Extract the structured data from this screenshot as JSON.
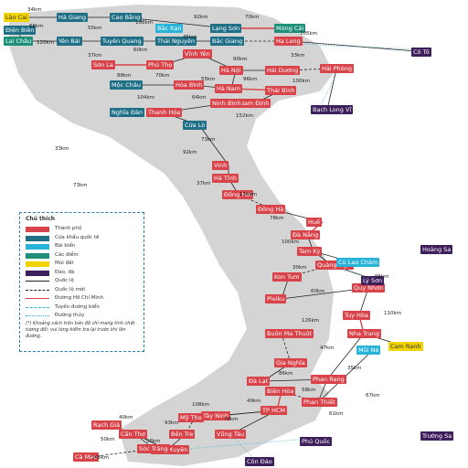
{
  "colors": {
    "red": "#d9434a",
    "teal": "#1f6f87",
    "cyan": "#2ab3d9",
    "green": "#1e8f78",
    "yellow": "#f1d300",
    "purple": "#3d1f5c",
    "land": "#d4d4d4",
    "legend_border": "#2a7fb0"
  },
  "labels": [
    {
      "text": "Lào Cai",
      "c": "yellow"
    },
    {
      "text": "Điện Biên",
      "c": "teal"
    },
    {
      "text": "Lai Châu",
      "c": "green"
    },
    {
      "text": "Hà Giang",
      "c": "teal"
    },
    {
      "text": "Cao Bằng",
      "c": "teal"
    },
    {
      "text": "Bắc Kạn",
      "c": "cyan"
    },
    {
      "text": "Lạng Sơn",
      "c": "teal"
    },
    {
      "text": "Móng Cái",
      "c": "green"
    },
    {
      "text": "Yên Bái",
      "c": "teal"
    },
    {
      "text": "Tuyên Quang",
      "c": "teal"
    },
    {
      "text": "Thái Nguyên",
      "c": "teal"
    },
    {
      "text": "Bắc Giang",
      "c": "teal"
    },
    {
      "text": "Hạ Long",
      "c": "red"
    },
    {
      "text": "Sơn La",
      "c": "red"
    },
    {
      "text": "Phú Thọ",
      "c": "red"
    },
    {
      "text": "Vĩnh Yên",
      "c": "red"
    },
    {
      "text": "Hà Nội",
      "c": "red"
    },
    {
      "text": "Hải Dương",
      "c": "red"
    },
    {
      "text": "Hải Phòng",
      "c": "red"
    },
    {
      "text": "Mộc Châu",
      "c": "teal"
    },
    {
      "text": "Hòa Bình",
      "c": "red"
    },
    {
      "text": "Hà Nam",
      "c": "red"
    },
    {
      "text": "Thái Bình",
      "c": "red"
    },
    {
      "text": "Nam Định",
      "c": "red"
    },
    {
      "text": "Ninh Bình",
      "c": "red"
    },
    {
      "text": "Bạch Long Vĩ",
      "c": "purple"
    },
    {
      "text": "Cô Tô",
      "c": "purple"
    },
    {
      "text": "Thanh Hóa",
      "c": "red"
    },
    {
      "text": "Nghĩa Đàn",
      "c": "teal"
    },
    {
      "text": "Cửa Lò",
      "c": "teal"
    },
    {
      "text": "Vinh",
      "c": "red"
    },
    {
      "text": "Hà Tĩnh",
      "c": "red"
    },
    {
      "text": "Đồng Hới",
      "c": "red"
    },
    {
      "text": "Đông Hà",
      "c": "red"
    },
    {
      "text": "Huế",
      "c": "red"
    },
    {
      "text": "Đà Nẵng",
      "c": "red"
    },
    {
      "text": "Tam Kỳ",
      "c": "red"
    },
    {
      "text": "Quảng Ngãi",
      "c": "red"
    },
    {
      "text": "Kon Tum",
      "c": "red"
    },
    {
      "text": "Pleiku",
      "c": "red"
    },
    {
      "text": "Quy Nhơn",
      "c": "red"
    },
    {
      "text": "Tuy Hòa",
      "c": "red"
    },
    {
      "text": "Buôn Ma Thuột",
      "c": "red"
    },
    {
      "text": "Nha Trang",
      "c": "red"
    },
    {
      "text": "Gia Nghĩa",
      "c": "red"
    },
    {
      "text": "Đà Lạt",
      "c": "red"
    },
    {
      "text": "Phan Rang",
      "c": "red"
    },
    {
      "text": "Phan Thiết",
      "c": "red"
    },
    {
      "text": "Biên Hòa",
      "c": "red"
    },
    {
      "text": "TP HCM",
      "c": "red"
    },
    {
      "text": "Vũng Tàu",
      "c": "red"
    },
    {
      "text": "Tây Ninh",
      "c": "red"
    },
    {
      "text": "Mỹ Tho",
      "c": "red"
    },
    {
      "text": "Bến Tre",
      "c": "red"
    },
    {
      "text": "Long Xuyên",
      "c": "red"
    },
    {
      "text": "Cần Thơ",
      "c": "red"
    },
    {
      "text": "Rạch Giá",
      "c": "red"
    },
    {
      "text": "Sóc Trăng",
      "c": "red"
    },
    {
      "text": "Cà Mau",
      "c": "red"
    },
    {
      "text": "Hoàng Sa",
      "c": "purple"
    },
    {
      "text": "Trường Sa",
      "c": "purple"
    },
    {
      "text": "Phú Quốc",
      "c": "purple"
    },
    {
      "text": "Côn Đảo",
      "c": "purple"
    },
    {
      "text": "Lý Sơn",
      "c": "purple"
    },
    {
      "text": "Cù Lao Chàm",
      "c": "cyan"
    },
    {
      "text": "Mũi Né",
      "c": "cyan"
    },
    {
      "text": "Cam Ranh",
      "c": "yellow"
    }
  ],
  "distances": [
    "34km",
    "68km",
    "120km",
    "55km",
    "108km",
    "92km",
    "70km",
    "105km",
    "37km",
    "60km",
    "45km",
    "90km",
    "33km",
    "88km",
    "70km",
    "55km",
    "96km",
    "100km",
    "104km",
    "64km",
    "152km",
    "73km",
    "92km",
    "37km",
    "134km",
    "78km",
    "100km",
    "30km",
    "60km",
    "126km",
    "47km",
    "86km",
    "58km",
    "49km",
    "76km",
    "108km",
    "93km",
    "56km",
    "40km",
    "50km",
    "148km",
    "35km",
    "67km",
    "95km",
    "110km",
    "33km",
    "73km",
    "61km"
  ],
  "legend": {
    "title": "Chú thích",
    "items": [
      {
        "label": "Thành phố",
        "kind": "swatch",
        "c": "red"
      },
      {
        "label": "Cửa khẩu quốc tế",
        "kind": "swatch",
        "c": "teal"
      },
      {
        "label": "Bãi biển",
        "kind": "swatch",
        "c": "cyan"
      },
      {
        "label": "Các điểm",
        "kind": "swatch",
        "c": "green"
      },
      {
        "label": "Mũi đất",
        "kind": "swatch",
        "c": "yellow"
      },
      {
        "label": "Đảo, đá",
        "kind": "swatch",
        "c": "purple"
      },
      {
        "label": "Quốc lộ",
        "kind": "line",
        "stroke": "#222",
        "dash": "none"
      },
      {
        "label": "Quốc lộ mới",
        "kind": "line",
        "stroke": "#222",
        "dash": "3,2"
      },
      {
        "label": "Đường Hồ Chí Minh",
        "kind": "line",
        "stroke": "#d9434a",
        "dash": "none"
      },
      {
        "label": "Tuyến đường biển",
        "kind": "line",
        "stroke": "#2ab3d9",
        "dash": "3,2"
      },
      {
        "label": "Đường thủy",
        "kind": "line",
        "stroke": "#2ab3d9",
        "dash": "1,2"
      }
    ],
    "note": "(*) Khoảng cách trên bản đồ chỉ mang tính chất tương đối; vui lòng kiểm tra lại trước khi lên đường."
  }
}
